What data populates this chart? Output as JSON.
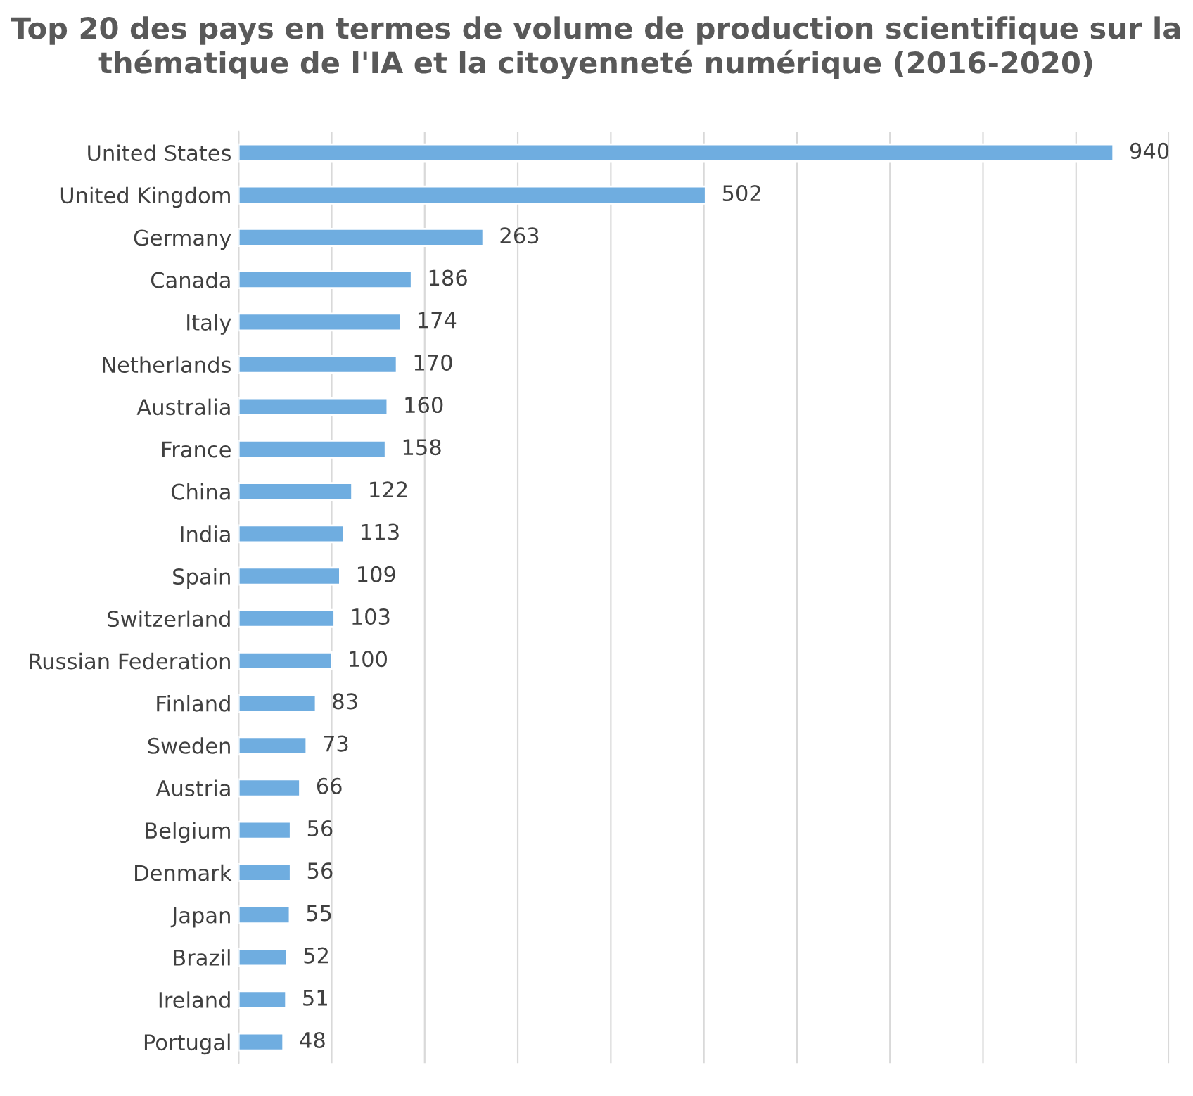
{
  "chart_data": {
    "type": "bar",
    "orientation": "horizontal",
    "title": "Top 20 des pays en termes de volume de production scientifique sur la thématique de l'IA et la citoyenneté numérique (2016-2020)",
    "categories": [
      "United States",
      "United Kingdom",
      "Germany",
      "Canada",
      "Italy",
      "Netherlands",
      "Australia",
      "France",
      "China",
      "India",
      "Spain",
      "Switzerland",
      "Russian Federation",
      "Finland",
      "Sweden",
      "Austria",
      "Belgium",
      "Denmark",
      "Japan",
      "Brazil",
      "Ireland",
      "Portugal"
    ],
    "values": [
      940,
      502,
      263,
      186,
      174,
      170,
      160,
      158,
      122,
      113,
      109,
      103,
      100,
      83,
      73,
      66,
      56,
      56,
      55,
      52,
      51,
      48
    ],
    "color": "#6fade0",
    "xlim": [
      0,
      1000
    ],
    "xticks": [
      {
        "value": 0,
        "label": null
      },
      {
        "value": 100,
        "label": null
      },
      {
        "value": 200,
        "label": null
      },
      {
        "value": 300,
        "label": null
      },
      {
        "value": 400,
        "label": null
      },
      {
        "value": 500,
        "label": null
      },
      {
        "value": 600,
        "label": null
      },
      {
        "value": 700,
        "label": null
      },
      {
        "value": 800,
        "label": null
      },
      {
        "value": 900,
        "label": null
      },
      {
        "value": 1000,
        "label": null
      }
    ],
    "grid": "x",
    "tick_labels": "y",
    "data_labels": true
  }
}
